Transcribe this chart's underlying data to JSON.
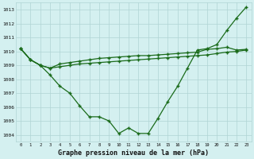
{
  "xlabel": "Graphe pression niveau de la mer (hPa)",
  "x": [
    0,
    1,
    2,
    3,
    4,
    5,
    6,
    7,
    8,
    9,
    10,
    11,
    12,
    13,
    14,
    15,
    16,
    17,
    18,
    19,
    20,
    21,
    22,
    23
  ],
  "line1": [
    1010.2,
    1009.4,
    1009.0,
    1008.3,
    1007.5,
    1007.0,
    1006.1,
    1005.3,
    1005.3,
    1005.0,
    1004.1,
    1004.5,
    1004.1,
    1004.1,
    1005.2,
    1006.4,
    1007.5,
    1008.8,
    1010.1,
    1010.2,
    1010.5,
    1011.5,
    1012.4,
    1013.2
  ],
  "line2": [
    1010.2,
    1009.4,
    1009.0,
    1008.8,
    1008.9,
    1009.0,
    1009.1,
    1009.15,
    1009.2,
    1009.25,
    1009.3,
    1009.35,
    1009.4,
    1009.45,
    1009.5,
    1009.55,
    1009.6,
    1009.65,
    1009.7,
    1009.75,
    1009.85,
    1009.95,
    1010.0,
    1010.1
  ],
  "line3": [
    1010.2,
    1009.4,
    1009.0,
    1008.8,
    1009.1,
    1009.2,
    1009.3,
    1009.4,
    1009.5,
    1009.55,
    1009.6,
    1009.65,
    1009.7,
    1009.7,
    1009.75,
    1009.8,
    1009.85,
    1009.9,
    1009.95,
    1010.15,
    1010.2,
    1010.3,
    1010.1,
    1010.15
  ],
  "ylim": [
    1003.5,
    1013.5
  ],
  "yticks": [
    1004,
    1005,
    1006,
    1007,
    1008,
    1009,
    1010,
    1011,
    1012,
    1013
  ],
  "bg_color": "#d4f0f0",
  "line_color": "#1a6b1a",
  "grid_color": "#b0d4d4",
  "marker": "+"
}
